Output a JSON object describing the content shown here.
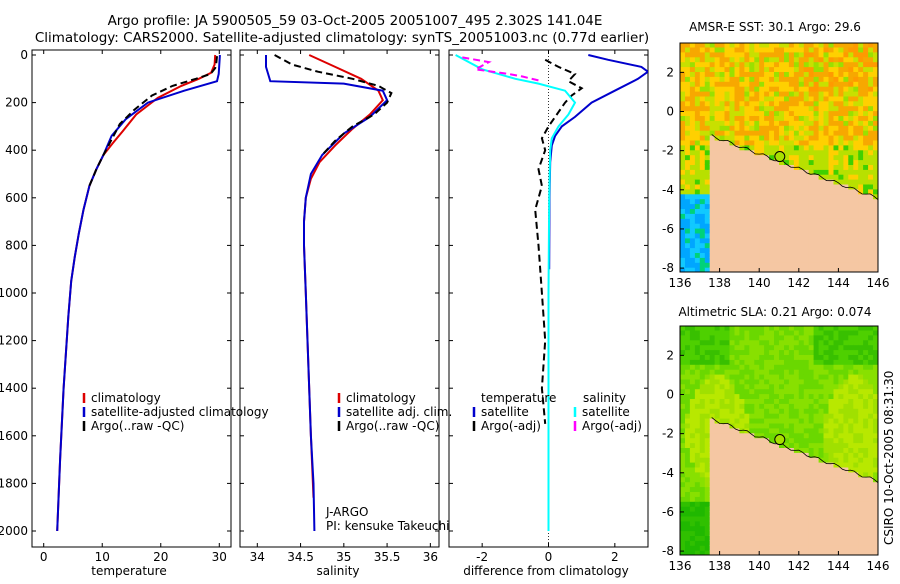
{
  "figure": {
    "title_line1": "Argo profile: JA 5900505_59 03-Oct-2005 20051007_495 2.302S 141.04E",
    "title_line2": "Climatology: CARS2000. Satellite-adjusted climatology: synTS_20051003.nc (0.77d earlier)",
    "credit": "CSIRO 10-Oct-2005 08:31:30"
  },
  "colors": {
    "climatology": "#dd0000",
    "satellite": "#0000cc",
    "argo": "#000000",
    "salinity_satellite": "#00ffff",
    "salinity_argo": "#ff00ff",
    "land": "#f5c7a3",
    "frame": "#000000"
  },
  "chart_data": [
    {
      "id": "temperature",
      "type": "line",
      "xlabel": "temperature",
      "xlim": [
        -2,
        32
      ],
      "xticks": [
        0,
        10,
        20,
        30
      ],
      "ylim": [
        0,
        2050
      ],
      "yticks": [
        0,
        200,
        400,
        600,
        800,
        1000,
        1200,
        1400,
        1600,
        1800,
        2000
      ],
      "y_reversed": true,
      "legend": [
        "climatology",
        "satellite-adjusted climatology",
        "Argo(..raw -QC)"
      ],
      "legend_location": "lower-center",
      "series": [
        {
          "name": "climatology",
          "color": "#dd0000",
          "style": "solid",
          "x": [
            29.3,
            29.2,
            28.6,
            26.5,
            23.5,
            19.5,
            15.8,
            13.5,
            11.8,
            10.2,
            9.0,
            7.8,
            6.8,
            6.0,
            5.3,
            4.7,
            4.2,
            3.4,
            2.8,
            2.3
          ],
          "y": [
            0,
            40,
            75,
            100,
            130,
            180,
            250,
            320,
            370,
            420,
            480,
            550,
            650,
            750,
            850,
            950,
            1100,
            1400,
            1700,
            2000
          ]
        },
        {
          "name": "satellite-adjusted climatology",
          "color": "#0000cc",
          "style": "solid",
          "x": [
            30.1,
            30.0,
            29.9,
            29.6,
            24.0,
            17.8,
            14.0,
            11.6,
            10.2,
            9.0,
            7.8,
            6.8,
            6.0,
            5.3,
            4.7,
            4.2,
            3.4,
            2.8,
            2.3
          ],
          "y": [
            0,
            40,
            80,
            110,
            150,
            200,
            270,
            340,
            420,
            480,
            550,
            650,
            750,
            850,
            950,
            1100,
            1400,
            1700,
            2000
          ]
        },
        {
          "name": "Argo(..raw -QC)",
          "color": "#000000",
          "style": "dashed",
          "x": [
            29.6,
            29.5,
            29.3,
            28.5,
            26.0,
            22.0,
            18.5,
            15.5,
            13.0,
            11.5,
            10.2,
            9.0,
            7.8
          ],
          "y": [
            5,
            30,
            55,
            80,
            100,
            130,
            170,
            230,
            290,
            360,
            420,
            480,
            550
          ]
        }
      ]
    },
    {
      "id": "salinity",
      "type": "line",
      "xlabel": "salinity",
      "xlim": [
        33.8,
        36.1
      ],
      "xticks": [
        34,
        34.5,
        35,
        35.5,
        36
      ],
      "ylim": [
        0,
        2050
      ],
      "y_reversed": true,
      "legend": [
        "climatology",
        "satellite adj. clim.",
        "Argo(..raw -QC)"
      ],
      "legend_location": "lower-right",
      "annotation_line1": "J-ARGO",
      "annotation_line2": "PI: kensuke Takeuchi",
      "series": [
        {
          "name": "climatology",
          "color": "#dd0000",
          "style": "solid",
          "x": [
            34.6,
            34.9,
            35.2,
            35.4,
            35.45,
            35.3,
            35.1,
            34.9,
            34.72,
            34.62,
            34.56,
            34.54,
            34.54,
            34.55,
            34.56,
            34.58,
            34.6,
            34.62,
            34.65
          ],
          "y": [
            0,
            50,
            100,
            150,
            190,
            250,
            310,
            380,
            450,
            520,
            600,
            700,
            800,
            900,
            1000,
            1200,
            1400,
            1600,
            1860
          ]
        },
        {
          "name": "satellite adj. clim.",
          "color": "#0000cc",
          "style": "solid",
          "x": [
            34.1,
            34.1,
            34.15,
            35.0,
            35.45,
            35.5,
            35.3,
            35.0,
            34.75,
            34.62,
            34.56,
            34.54,
            34.54,
            34.55,
            34.56,
            34.58,
            34.6,
            34.62,
            34.65,
            34.66
          ],
          "y": [
            0,
            50,
            110,
            120,
            150,
            190,
            260,
            330,
            420,
            500,
            600,
            700,
            800,
            900,
            1000,
            1200,
            1400,
            1600,
            1800,
            2000
          ]
        },
        {
          "name": "Argo(..raw -QC)",
          "color": "#000000",
          "style": "dashed",
          "x": [
            34.2,
            34.4,
            34.7,
            35.1,
            35.4,
            35.55,
            35.5,
            35.35,
            35.1,
            34.9,
            34.75
          ],
          "y": [
            0,
            40,
            70,
            100,
            130,
            160,
            200,
            250,
            300,
            360,
            420
          ]
        }
      ]
    },
    {
      "id": "difference",
      "type": "line",
      "xlabel": "difference from climatology",
      "xlim": [
        -3,
        3
      ],
      "xticks": [
        -2,
        0,
        2
      ],
      "ylim": [
        0,
        2050
      ],
      "y_reversed": true,
      "legend_headers": [
        "temperature",
        "salinity"
      ],
      "legend": [
        "satellite",
        "Argo(-adj)",
        "satellite",
        "Argo(-adj)"
      ],
      "legend_location": "lower-center",
      "series": [
        {
          "name": "satellite",
          "group": "temperature",
          "color": "#0000cc",
          "style": "solid",
          "x": [
            1.2,
            1.8,
            2.8,
            3.0,
            2.7,
            2.0,
            1.3,
            0.8,
            0.4,
            0.2,
            0.1,
            0.05,
            0.03,
            0.02
          ],
          "y": [
            0,
            20,
            50,
            70,
            100,
            150,
            200,
            260,
            300,
            340,
            380,
            450,
            600,
            900
          ]
        },
        {
          "name": "Argo(-adj)",
          "group": "temperature",
          "color": "#000000",
          "style": "dashed",
          "x": [
            -0.1,
            0.3,
            0.8,
            0.6,
            1.0,
            0.7,
            0.5,
            0.3,
            0.0,
            -0.2,
            -0.1,
            -0.3,
            -0.2,
            -0.4,
            -0.3,
            -0.2,
            -0.1,
            -0.2,
            -0.1
          ],
          "y": [
            20,
            50,
            80,
            110,
            140,
            170,
            200,
            240,
            300,
            350,
            400,
            480,
            550,
            650,
            800,
            1000,
            1200,
            1400,
            1550
          ]
        },
        {
          "name": "satellite",
          "group": "salinity",
          "color": "#00ffff",
          "style": "solid",
          "x": [
            -2.8,
            -2.0,
            -1.0,
            -0.3,
            0.5,
            0.8,
            0.6,
            0.3,
            0.1,
            0.05,
            0.02,
            0.0,
            0.0
          ],
          "y": [
            0,
            60,
            100,
            120,
            150,
            200,
            250,
            300,
            350,
            400,
            600,
            1000,
            2000
          ]
        },
        {
          "name": "Argo(-adj)",
          "group": "salinity",
          "color": "#ff00ff",
          "style": "dashed",
          "x": [
            -2.6,
            -1.8,
            -2.2,
            -1.2,
            -0.8,
            -0.2
          ],
          "y": [
            10,
            30,
            60,
            80,
            90,
            110
          ]
        }
      ]
    },
    {
      "id": "sst_map",
      "type": "heatmap",
      "title": "AMSR-E SST: 30.1  Argo: 29.6",
      "xlim": [
        136,
        146
      ],
      "ylim": [
        -8.2,
        3.5
      ],
      "xticks": [
        136,
        138,
        140,
        142,
        144,
        146
      ],
      "yticks": [
        2,
        0,
        -2,
        -4,
        -6,
        -8
      ],
      "marker": {
        "lon": 141.04,
        "lat": -2.302
      }
    },
    {
      "id": "sla_map",
      "type": "heatmap",
      "title": "Altimetric SLA: 0.21  Argo: 0.074",
      "xlim": [
        136,
        146
      ],
      "ylim": [
        -8.2,
        3.5
      ],
      "xticks": [
        136,
        138,
        140,
        142,
        144,
        146
      ],
      "yticks": [
        2,
        0,
        -2,
        -4,
        -6,
        -8
      ],
      "marker": {
        "lon": 141.04,
        "lat": -2.302
      }
    }
  ]
}
